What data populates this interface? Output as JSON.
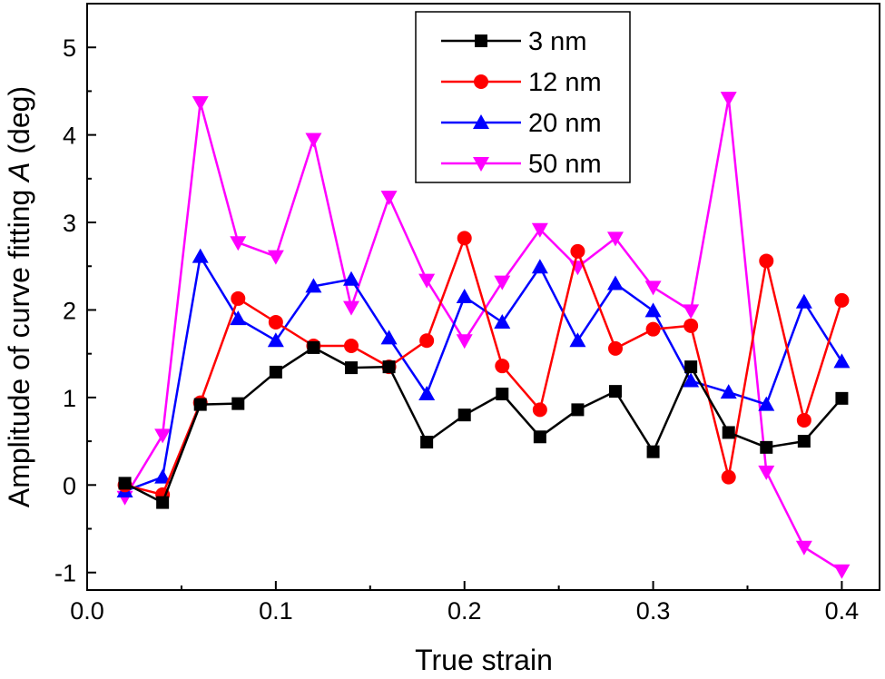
{
  "chart_data": {
    "type": "line",
    "title": "",
    "xlabel": "True strain",
    "ylabel_prefix": "Amplitude of curve fitting ",
    "ylabel_italic": "A",
    "ylabel_suffix": " (deg)",
    "xlim": [
      0.0,
      0.42
    ],
    "ylim": [
      -1.2,
      5.5
    ],
    "xticks": [
      0.0,
      0.1,
      0.2,
      0.3,
      0.4
    ],
    "xtick_labels": [
      "0.0",
      "0.1",
      "0.2",
      "0.3",
      "0.4"
    ],
    "yticks": [
      -1,
      0,
      1,
      2,
      3,
      4,
      5
    ],
    "ytick_labels": [
      "-1",
      "0",
      "1",
      "2",
      "3",
      "4",
      "5"
    ],
    "grid": false,
    "legend_position": "top-right",
    "x": [
      0.02,
      0.04,
      0.06,
      0.08,
      0.1,
      0.12,
      0.14,
      0.16,
      0.18,
      0.2,
      0.22,
      0.24,
      0.26,
      0.28,
      0.3,
      0.32,
      0.34,
      0.36,
      0.38,
      0.4
    ],
    "series": [
      {
        "name": "3 nm",
        "color": "#000000",
        "marker": "square",
        "values": [
          0.02,
          -0.2,
          0.92,
          0.93,
          1.29,
          1.57,
          1.34,
          1.35,
          0.49,
          0.8,
          1.04,
          0.55,
          0.86,
          1.07,
          0.38,
          1.35,
          0.6,
          0.43,
          0.5,
          0.99
        ]
      },
      {
        "name": "12 nm",
        "color": "#ff0000",
        "marker": "circle",
        "values": [
          0.0,
          -0.11,
          0.94,
          2.13,
          1.86,
          1.59,
          1.59,
          1.35,
          1.65,
          2.82,
          1.36,
          0.86,
          2.67,
          1.56,
          1.78,
          1.82,
          0.09,
          2.56,
          0.74,
          2.11
        ]
      },
      {
        "name": "20 nm",
        "color": "#0000ff",
        "marker": "triangle-up",
        "values": [
          -0.07,
          0.09,
          2.61,
          1.9,
          1.65,
          2.27,
          2.35,
          1.68,
          1.04,
          2.15,
          1.86,
          2.49,
          1.65,
          2.3,
          1.99,
          1.19,
          1.06,
          0.92,
          2.09,
          1.41
        ]
      },
      {
        "name": "50 nm",
        "color": "#ff00ff",
        "marker": "triangle-down",
        "values": [
          -0.14,
          0.57,
          4.37,
          2.77,
          2.61,
          3.95,
          2.03,
          3.29,
          2.34,
          1.65,
          2.32,
          2.92,
          2.49,
          2.82,
          2.26,
          1.99,
          4.42,
          0.15,
          -0.71,
          -0.98
        ]
      }
    ]
  }
}
